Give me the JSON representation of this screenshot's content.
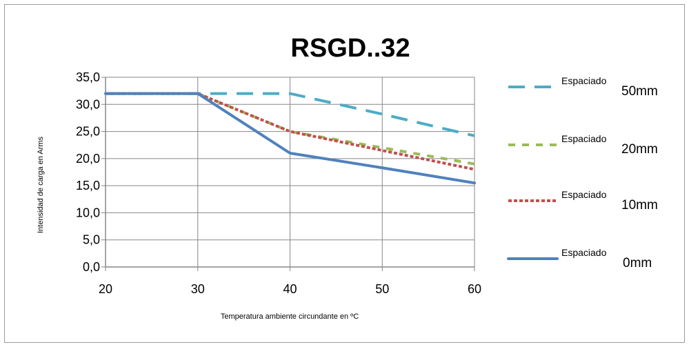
{
  "chart_data": {
    "type": "line",
    "title": "RSGD..32",
    "xlabel": "Temperatura ambiente circundante en ºC",
    "ylabel": "Intensidad de carga en Arms",
    "x": [
      20,
      30,
      40,
      50,
      60
    ],
    "xlim": [
      20,
      60
    ],
    "ylim": [
      0,
      35
    ],
    "xticks": [
      "20",
      "30",
      "40",
      "50",
      "60"
    ],
    "yticks": [
      "0,0",
      "5,0",
      "10,0",
      "15,0",
      "20,0",
      "25,0",
      "30,0",
      "35,0"
    ],
    "grid": true,
    "legend_position": "right",
    "series": [
      {
        "name_small": "Espaciado",
        "name_large": "50mm",
        "color": "#4bacc6",
        "dash": "long-dash",
        "values": [
          32,
          32,
          32,
          28.2,
          24.2
        ]
      },
      {
        "name_small": "Espaciado",
        "name_large": "20mm",
        "color": "#9bbb59",
        "dash": "dash",
        "values": [
          32,
          32,
          25,
          22,
          19
        ]
      },
      {
        "name_small": "Espaciado",
        "name_large": "10mm",
        "color": "#c0504d",
        "dash": "dot",
        "values": [
          32,
          32,
          25,
          21.5,
          18
        ]
      },
      {
        "name_small": "Espaciado",
        "name_large": "0mm",
        "color": "#4f81bd",
        "dash": "solid",
        "values": [
          32,
          32,
          21,
          18.3,
          15.5
        ]
      }
    ]
  }
}
